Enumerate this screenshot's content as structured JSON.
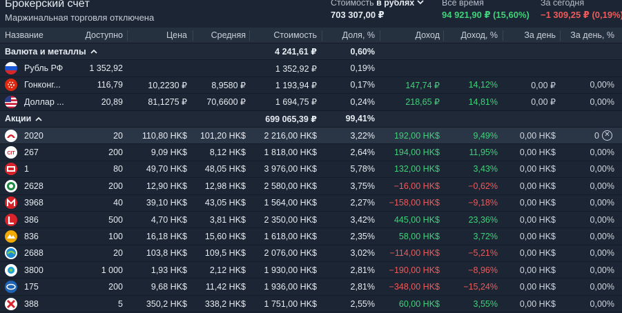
{
  "header": {
    "title": "Брокерский счёт",
    "subtitle": "Маржинальная торговля отключена",
    "value_label_prefix": "Стоимость ",
    "value_label_currency": "в рублях",
    "value": "703 307,00 ₽",
    "alltime_label": "Всё время",
    "alltime_value": "94 921,90 ₽ (15,60%)",
    "today_label": "За сегодня",
    "today_value": "−1 309,25 ₽ (0,19%)"
  },
  "columns": {
    "name": "Название",
    "avail": "Доступно",
    "price": "Цена",
    "avg": "Средняя",
    "value": "Стоимость",
    "share": "Доля, %",
    "income": "Доход",
    "income_pct": "Доход, %",
    "day": "За день",
    "day_pct": "За день, %"
  },
  "groups": {
    "currency": {
      "label": "Валюта и металлы",
      "value": "4 241,61 ₽",
      "share": "0,60%"
    },
    "stocks": {
      "label": "Акции",
      "value": "699 065,39 ₽",
      "share": "99,41%"
    }
  },
  "currency_rows": [
    {
      "icon": "russia-flag-icon",
      "name": "Рубль РФ",
      "avail": "1 352,92",
      "price": "",
      "avg": "",
      "value": "1 352,92 ₽",
      "share": "0,19%",
      "income": "",
      "income_pct": "",
      "day": "",
      "day_pct": "",
      "sign": ""
    },
    {
      "icon": "hong-kong-flag-icon",
      "name": "Гонконг...",
      "avail": "116,79",
      "price": "10,2230 ₽",
      "avg": "8,9580 ₽",
      "value": "1 193,94 ₽",
      "share": "0,17%",
      "income": "147,74 ₽",
      "income_pct": "14,12%",
      "day": "0,00 ₽",
      "day_pct": "0,00%",
      "sign": "pos"
    },
    {
      "icon": "usa-flag-icon",
      "name": "Доллар ...",
      "avail": "20,89",
      "price": "81,1275 ₽",
      "avg": "70,6600 ₽",
      "value": "1 694,75 ₽",
      "share": "0,24%",
      "income": "218,65 ₽",
      "income_pct": "14,81%",
      "day": "0,00 ₽",
      "day_pct": "0,00%",
      "sign": "pos"
    }
  ],
  "stock_rows": [
    {
      "icon": "anta-logo-icon",
      "name": "2020",
      "avail": "20",
      "price": "110,80 HK$",
      "avg": "101,20 HK$",
      "value": "2 216,00 HK$",
      "share": "3,22%",
      "income": "192,00 HK$",
      "income_pct": "9,49%",
      "day": "0,00 HK$",
      "day_pct": "0",
      "sign": "pos"
    },
    {
      "icon": "geely-logo-icon",
      "name": "267",
      "avail": "200",
      "price": "9,09 HK$",
      "avg": "8,12 HK$",
      "value": "1 818,00 HK$",
      "share": "2,64%",
      "income": "194,00 HK$",
      "income_pct": "11,95%",
      "day": "0,00 HK$",
      "day_pct": "0,00%",
      "sign": "pos"
    },
    {
      "icon": "ckh-logo-icon",
      "name": "1",
      "avail": "80",
      "price": "49,70 HK$",
      "avg": "48,05 HK$",
      "value": "3 976,00 HK$",
      "share": "5,78%",
      "income": "132,00 HK$",
      "income_pct": "3,43%",
      "day": "0,00 HK$",
      "day_pct": "0,00%",
      "sign": "pos"
    },
    {
      "icon": "logo-2628-icon",
      "name": "2628",
      "avail": "200",
      "price": "12,90 HK$",
      "avg": "12,98 HK$",
      "value": "2 580,00 HK$",
      "share": "3,75%",
      "income": "−16,00 HK$",
      "income_pct": "−0,62%",
      "day": "0,00 HK$",
      "day_pct": "0,00%",
      "sign": "neg"
    },
    {
      "icon": "logo-3968-icon",
      "name": "3968",
      "avail": "40",
      "price": "39,10 HK$",
      "avg": "43,05 HK$",
      "value": "1 564,00 HK$",
      "share": "2,27%",
      "income": "−158,00 HK$",
      "income_pct": "−9,18%",
      "day": "0,00 HK$",
      "day_pct": "0,00%",
      "sign": "neg"
    },
    {
      "icon": "logo-386-icon",
      "name": "386",
      "avail": "500",
      "price": "4,70 HK$",
      "avg": "3,81 HK$",
      "value": "2 350,00 HK$",
      "share": "3,42%",
      "income": "445,00 HK$",
      "income_pct": "23,36%",
      "day": "0,00 HK$",
      "day_pct": "0,00%",
      "sign": "pos"
    },
    {
      "icon": "logo-836-icon",
      "name": "836",
      "avail": "100",
      "price": "16,18 HK$",
      "avg": "15,60 HK$",
      "value": "1 618,00 HK$",
      "share": "2,35%",
      "income": "58,00 HK$",
      "income_pct": "3,72%",
      "day": "0,00 HK$",
      "day_pct": "0,00%",
      "sign": "pos"
    },
    {
      "icon": "logo-2688-icon",
      "name": "2688",
      "avail": "20",
      "price": "103,8 HK$",
      "avg": "109,5 HK$",
      "value": "2 076,00 HK$",
      "share": "3,02%",
      "income": "−114,00 HK$",
      "income_pct": "−5,21%",
      "day": "0,00 HK$",
      "day_pct": "0,00%",
      "sign": "neg"
    },
    {
      "icon": "logo-3800-icon",
      "name": "3800",
      "avail": "1 000",
      "price": "1,93 HK$",
      "avg": "2,12 HK$",
      "value": "1 930,00 HK$",
      "share": "2,81%",
      "income": "−190,00 HK$",
      "income_pct": "−8,96%",
      "day": "0,00 HK$",
      "day_pct": "0,00%",
      "sign": "neg"
    },
    {
      "icon": "logo-175-icon",
      "name": "175",
      "avail": "200",
      "price": "9,68 HK$",
      "avg": "11,42 HK$",
      "value": "1 936,00 HK$",
      "share": "2,81%",
      "income": "−348,00 HK$",
      "income_pct": "−15,24%",
      "day": "0,00 HK$",
      "day_pct": "0,00%",
      "sign": "neg"
    },
    {
      "icon": "logo-388-icon",
      "name": "388",
      "avail": "5",
      "price": "350,2 HK$",
      "avg": "338,2 HK$",
      "value": "1 751,00 HK$",
      "share": "2,55%",
      "income": "60,00 HK$",
      "income_pct": "3,55%",
      "day": "0,00 HK$",
      "day_pct": "0,00%",
      "sign": "pos"
    }
  ],
  "colors": {
    "positive": "#3fd27a",
    "negative": "#f05a5a",
    "background": "#1c2533"
  }
}
